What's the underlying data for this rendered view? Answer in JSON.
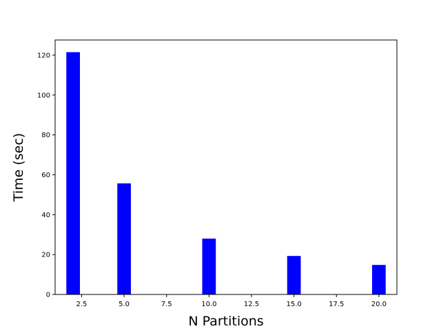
{
  "chart_data": {
    "type": "bar",
    "title": "",
    "xlabel": "N Partitions",
    "ylabel": "Time (sec)",
    "x": [
      2,
      5,
      10,
      15,
      20
    ],
    "values": [
      121.5,
      55.7,
      28.0,
      19.3,
      14.8
    ],
    "bar_color": "#0000ff",
    "bar_width": 0.8,
    "xlim": [
      0.94,
      21.06
    ],
    "ylim": [
      0,
      127.6
    ],
    "xticks": [
      2.5,
      5.0,
      7.5,
      10.0,
      12.5,
      15.0,
      17.5,
      20.0
    ],
    "xtick_labels": [
      "2.5",
      "5.0",
      "7.5",
      "10.0",
      "12.5",
      "15.0",
      "17.5",
      "20.0"
    ],
    "yticks": [
      0,
      20,
      40,
      60,
      80,
      100,
      120
    ],
    "ytick_labels": [
      "0",
      "20",
      "40",
      "60",
      "80",
      "100",
      "120"
    ],
    "grid": false,
    "legend": "none"
  }
}
